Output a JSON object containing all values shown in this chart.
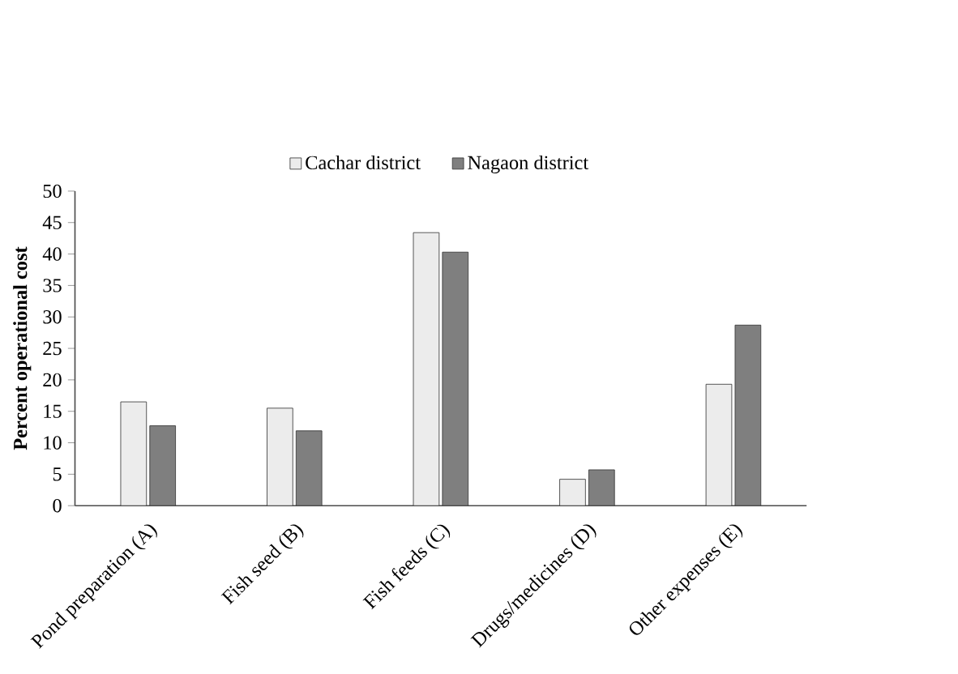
{
  "chart_data": {
    "type": "bar",
    "ylabel": "Percent operational cost",
    "categories": [
      "Pond preparation (A)",
      "Fish seed (B)",
      "Fish feeds (C)",
      "Drugs/medicines (D)",
      "Other expenses (E)"
    ],
    "series": [
      {
        "name": "Cachar district",
        "color": "#ececec",
        "values": [
          16.5,
          15.5,
          43.4,
          4.2,
          19.3
        ]
      },
      {
        "name": "Nagaon district",
        "color": "#7f7f7f",
        "values": [
          12.7,
          11.9,
          40.3,
          5.7,
          28.7
        ]
      }
    ],
    "ylim": [
      0,
      50
    ],
    "yticks": [
      0,
      5,
      10,
      15,
      20,
      25,
      30,
      35,
      40,
      45,
      50
    ],
    "legend": "top",
    "grid": false
  }
}
